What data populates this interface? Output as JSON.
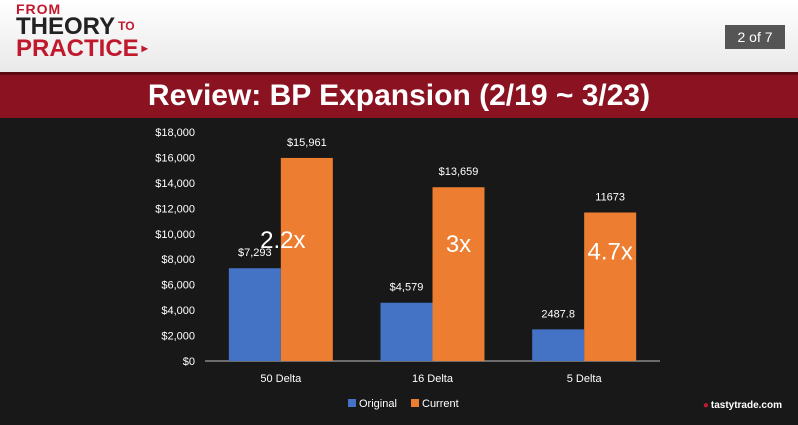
{
  "header": {
    "logo_line1": "FROM",
    "logo_line2": "THEORY",
    "logo_to": "TO",
    "logo_line3": "PRACTICE",
    "logo_arrow": "▸",
    "page_indicator": "2 of 7"
  },
  "title": "Review: BP Expansion (2/19 ~ 3/23)",
  "brand": "tastytrade.com",
  "chart_data": {
    "type": "bar",
    "title": "",
    "xlabel": "",
    "ylabel": "",
    "categories": [
      "50 Delta",
      "16 Delta",
      "5 Delta"
    ],
    "ylim": [
      0,
      18000
    ],
    "y_ticks": [
      0,
      2000,
      4000,
      6000,
      8000,
      10000,
      12000,
      14000,
      16000,
      18000
    ],
    "y_tick_labels": [
      "$0",
      "$2,000",
      "$4,000",
      "$6,000",
      "$8,000",
      "$10,000",
      "$12,000",
      "$14,000",
      "$16,000",
      "$18,000"
    ],
    "series": [
      {
        "name": "Original",
        "values": [
          7293,
          4579,
          2487.8
        ],
        "labels": [
          "$7,293",
          "$4,579",
          "2487.8"
        ],
        "color": "#4472c4"
      },
      {
        "name": "Current",
        "values": [
          15961,
          13659,
          11673
        ],
        "labels": [
          "$15,961",
          "$13,659",
          "11673"
        ],
        "color": "#ed7d31"
      }
    ],
    "annotations": [
      "2.2x",
      "3x",
      "4.7x"
    ],
    "legend": "bottom-center",
    "grid": false
  }
}
